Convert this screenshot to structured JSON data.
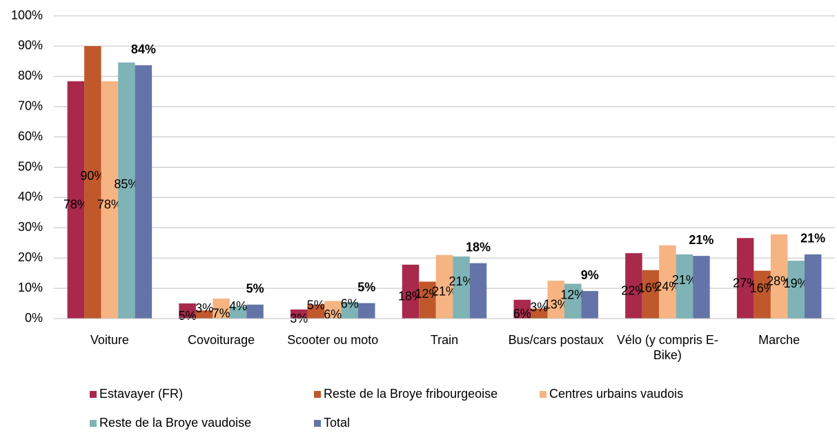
{
  "chart_data": {
    "type": "bar",
    "categories": [
      "Voiture",
      "Covoiturage",
      "Scooter ou moto",
      "Train",
      "Bus/cars postaux",
      "Vélo (y compris E-Bike)",
      "Marche"
    ],
    "series": [
      {
        "name": "Estavayer (FR)",
        "color": "#a8294b",
        "values": [
          78.4,
          5.0,
          3.0,
          17.8,
          6.2,
          21.6,
          26.6
        ],
        "value_labels": [
          "78%",
          "5%",
          "3%",
          "18%",
          "6%",
          "22%",
          "27%"
        ]
      },
      {
        "name": "Reste de la Broye fribourgeoise",
        "color": "#c0582c",
        "values": [
          90.0,
          2.7,
          4.6,
          12.2,
          3.3,
          16.0,
          15.8
        ],
        "value_labels": [
          "90%",
          "3%",
          "5%",
          "12%",
          "3%",
          "16%",
          "16%"
        ]
      },
      {
        "name": "Centres urbains vaudois",
        "color": "#f6b482",
        "values": [
          78.4,
          6.6,
          5.8,
          21.0,
          12.5,
          24.2,
          27.8
        ],
        "value_labels": [
          "78%",
          "7%",
          "6%",
          "21%",
          "13%",
          "24%",
          "28%"
        ]
      },
      {
        "name": "Reste de la Broye vaudoise",
        "color": "#7fb3b5",
        "values": [
          84.6,
          4.0,
          5.5,
          20.5,
          11.5,
          21.2,
          19.1
        ],
        "value_labels": [
          "85%",
          "4%",
          "6%",
          "21%",
          "12%",
          "21%",
          "19%"
        ]
      },
      {
        "name": "Total",
        "color": "#6474a8",
        "values": [
          83.7,
          4.6,
          5.1,
          18.3,
          9.1,
          20.7,
          21.2
        ],
        "value_labels": [
          "84%",
          "5%",
          "5%",
          "18%",
          "9%",
          "21%",
          "21%"
        ]
      }
    ],
    "ylim": [
      0,
      100
    ],
    "yticks": [
      {
        "value": 0,
        "label": "0%"
      },
      {
        "value": 10,
        "label": "10%"
      },
      {
        "value": 20,
        "label": "20%"
      },
      {
        "value": 30,
        "label": "30%"
      },
      {
        "value": 40,
        "label": "40%"
      },
      {
        "value": 50,
        "label": "50%"
      },
      {
        "value": 60,
        "label": "60%"
      },
      {
        "value": 70,
        "label": "70%"
      },
      {
        "value": 80,
        "label": "80%"
      },
      {
        "value": 90,
        "label": "90%"
      },
      {
        "value": 100,
        "label": "100%"
      }
    ],
    "grid": true,
    "legend": "bottom"
  }
}
